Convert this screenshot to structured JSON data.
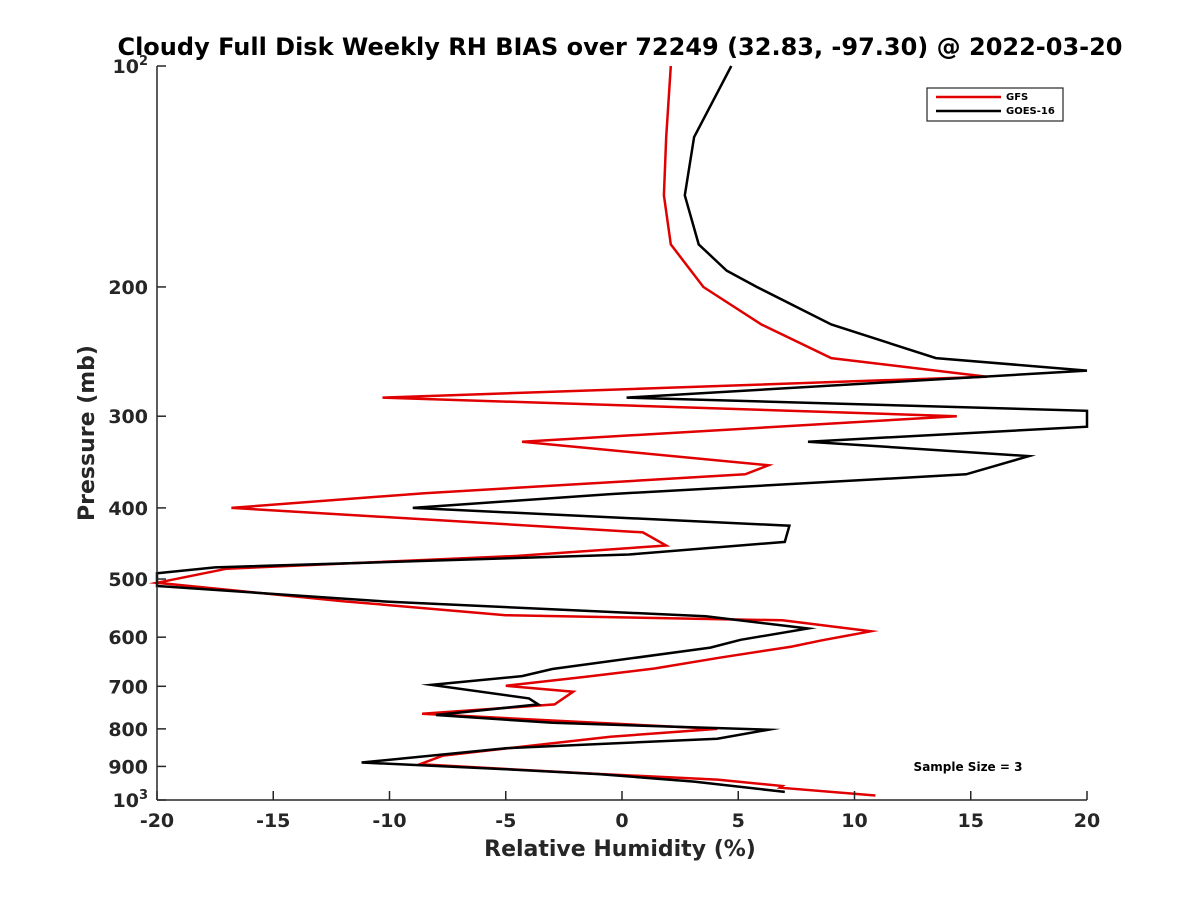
{
  "chart_data": {
    "type": "line",
    "title": "Cloudy Full Disk Weekly RH BIAS over 72249 (32.83, -97.30) @ 2022-03-20",
    "xlabel": "Relative Humidity (%)",
    "ylabel": "Pressure (mb)",
    "xlim": [
      -20,
      20
    ],
    "ylim": [
      100,
      1000
    ],
    "y_scale": "log",
    "y_reversed": true,
    "x_ticks": [
      "-20",
      "-15",
      "-10",
      "-5",
      "0",
      "5",
      "10",
      "15",
      "20"
    ],
    "y_ticks": [
      {
        "value": 100,
        "base": "10",
        "exp": "2"
      },
      {
        "value": 200,
        "label": "200"
      },
      {
        "value": 300,
        "label": "300"
      },
      {
        "value": 400,
        "label": "400"
      },
      {
        "value": 500,
        "label": "500"
      },
      {
        "value": 600,
        "label": "600"
      },
      {
        "value": 700,
        "label": "700"
      },
      {
        "value": 800,
        "label": "800"
      },
      {
        "value": 900,
        "label": "900"
      },
      {
        "value": 1000,
        "base": "10",
        "exp": "3"
      }
    ],
    "grid": false,
    "legend_position": "top-right",
    "annotation": "Sample Size = 3",
    "series": [
      {
        "name": "GFS",
        "color": "#e00000",
        "points": [
          [
            2.1,
            100
          ],
          [
            1.9,
            125
          ],
          [
            1.8,
            150
          ],
          [
            2.1,
            175
          ],
          [
            3.5,
            200
          ],
          [
            6.0,
            225
          ],
          [
            9.0,
            250
          ],
          [
            15.7,
            265
          ],
          [
            -10.3,
            283
          ],
          [
            14.4,
            300
          ],
          [
            -4.3,
            325
          ],
          [
            6.3,
            350
          ],
          [
            5.3,
            360
          ],
          [
            -8.5,
            382
          ],
          [
            -16.8,
            400
          ],
          [
            0.9,
            432
          ],
          [
            1.9,
            450
          ],
          [
            -4.5,
            465
          ],
          [
            -17.0,
            484
          ],
          [
            -20.0,
            506
          ],
          [
            -12.0,
            536
          ],
          [
            -5.0,
            560
          ],
          [
            6.9,
            569
          ],
          [
            10.7,
            589
          ],
          [
            8.6,
            606
          ],
          [
            7.3,
            618
          ],
          [
            4.2,
            640
          ],
          [
            1.4,
            662
          ],
          [
            -1.5,
            679
          ],
          [
            -5.0,
            699
          ],
          [
            -2.1,
            712
          ],
          [
            -2.9,
            741
          ],
          [
            -8.6,
            763
          ],
          [
            4.1,
            800
          ],
          [
            -0.5,
            820
          ],
          [
            -7.7,
            870
          ],
          [
            -8.7,
            894
          ],
          [
            -1.5,
            920
          ],
          [
            4.1,
            938
          ],
          [
            6.9,
            957
          ],
          [
            6.8,
            962
          ],
          [
            10.9,
            986
          ]
        ]
      },
      {
        "name": "GOES-16",
        "color": "#000000",
        "points": [
          [
            4.7,
            100
          ],
          [
            3.1,
            125
          ],
          [
            2.7,
            150
          ],
          [
            3.3,
            175
          ],
          [
            4.5,
            190
          ],
          [
            5.8,
            200
          ],
          [
            9.0,
            225
          ],
          [
            13.5,
            250
          ],
          [
            20.0,
            260
          ],
          [
            0.2,
            283
          ],
          [
            20.0,
            295
          ],
          [
            20.0,
            310
          ],
          [
            8.0,
            325
          ],
          [
            17.5,
            340
          ],
          [
            14.8,
            360
          ],
          [
            -0.5,
            383
          ],
          [
            -9.0,
            400
          ],
          [
            7.2,
            423
          ],
          [
            7.0,
            445
          ],
          [
            0.3,
            463
          ],
          [
            -17.5,
            482
          ],
          [
            -20.0,
            491
          ],
          [
            -20.0,
            511
          ],
          [
            -10.0,
            537
          ],
          [
            3.6,
            562
          ],
          [
            8.0,
            584
          ],
          [
            5.1,
            605
          ],
          [
            3.8,
            620
          ],
          [
            -3.0,
            663
          ],
          [
            -4.3,
            678
          ],
          [
            -8.2,
            697
          ],
          [
            -4.0,
            727
          ],
          [
            -3.6,
            741
          ],
          [
            -8.0,
            766
          ],
          [
            -3.0,
            785
          ],
          [
            6.3,
            802
          ],
          [
            4.1,
            825
          ],
          [
            -5.0,
            850
          ],
          [
            -11.2,
            889
          ],
          [
            -5.0,
            908
          ],
          [
            -1.0,
            922
          ],
          [
            3.1,
            944
          ],
          [
            7.0,
            975
          ]
        ]
      }
    ]
  }
}
